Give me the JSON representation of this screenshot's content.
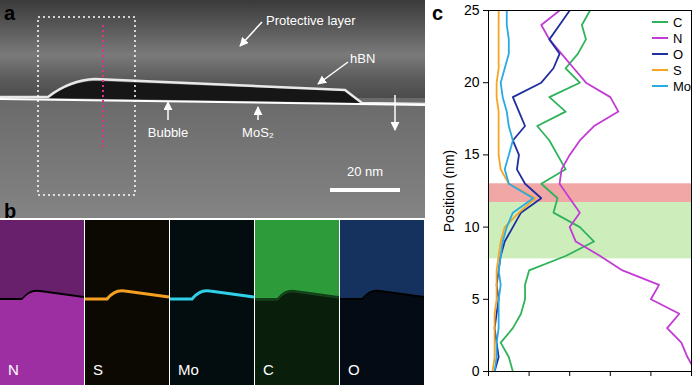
{
  "panels": {
    "a": {
      "label": "a",
      "annotations": [
        "Protective layer",
        "hBN",
        "Bubble",
        "MoS₂"
      ],
      "scale_bar": "20 nm"
    },
    "b": {
      "label": "b",
      "maps": [
        {
          "label": "N",
          "color": "#d23fd8"
        },
        {
          "label": "S",
          "color": "#f5a020"
        },
        {
          "label": "Mo",
          "color": "#2fd0e8"
        },
        {
          "label": "C",
          "color": "#3ccf4e"
        },
        {
          "label": "O",
          "color": "#2f6fd0"
        }
      ]
    }
  },
  "chart_data": {
    "label": "c",
    "type": "line",
    "ylabel": "Position (nm)",
    "y": [
      0,
      1,
      2,
      3,
      4,
      5,
      6,
      7,
      8,
      9,
      10,
      11,
      12,
      13,
      14,
      15,
      16,
      17,
      18,
      19,
      20,
      21,
      22,
      23,
      24,
      25
    ],
    "series": [
      {
        "name": "C",
        "color": "#2fb35a",
        "values": [
          1.2,
          1.0,
          0.6,
          1.2,
          1.6,
          1.8,
          1.8,
          2.0,
          3.8,
          5.2,
          4.5,
          3.2,
          3.4,
          2.6,
          3.8,
          3.4,
          3.0,
          2.4,
          3.8,
          3.0,
          4.5,
          3.8,
          4.4,
          4.8,
          4.6,
          5.0
        ]
      },
      {
        "name": "N",
        "color": "#c23bd4",
        "values": [
          10.2,
          9.8,
          9.5,
          8.8,
          9.4,
          8.0,
          8.4,
          6.6,
          5.5,
          4.3,
          4.0,
          4.5,
          4.0,
          3.5,
          3.6,
          4.0,
          4.5,
          5.2,
          6.4,
          6.0,
          4.8,
          4.2,
          3.6,
          3.0,
          2.6,
          3.5
        ]
      },
      {
        "name": "O",
        "color": "#1f2f9e",
        "values": [
          0.3,
          0.5,
          0.4,
          0.3,
          0.4,
          0.5,
          0.4,
          0.5,
          0.6,
          0.8,
          1.2,
          1.6,
          2.6,
          1.8,
          1.4,
          1.5,
          1.2,
          1.8,
          1.5,
          1.2,
          2.6,
          3.2,
          3.5,
          3.0,
          3.5,
          4.0
        ]
      },
      {
        "name": "S",
        "color": "#f5a623",
        "values": [
          0.2,
          0.3,
          0.3,
          0.3,
          0.3,
          0.4,
          0.4,
          0.4,
          0.5,
          0.6,
          0.8,
          1.5,
          2.3,
          1.0,
          0.6,
          0.5,
          0.5,
          0.5,
          0.5,
          0.4,
          0.4,
          0.5,
          0.5,
          0.5,
          0.5,
          0.5
        ]
      },
      {
        "name": "Mo",
        "color": "#29aae1",
        "values": [
          0.3,
          0.4,
          0.4,
          0.5,
          0.5,
          0.5,
          0.6,
          0.5,
          0.6,
          0.7,
          0.9,
          1.2,
          2.2,
          1.0,
          0.8,
          1.0,
          1.2,
          1.0,
          0.9,
          0.7,
          0.6,
          0.8,
          1.0,
          1.0,
          0.9,
          0.9
        ]
      }
    ],
    "bands": [
      {
        "range": [
          11.7,
          13
        ],
        "color": "#f2a7a7"
      },
      {
        "range": [
          7.8,
          11.7
        ],
        "color": "#cdeebb"
      }
    ],
    "xlim": [
      0,
      10
    ],
    "xticks": [
      0,
      2,
      4,
      6,
      8,
      10
    ],
    "ylim": [
      0,
      25
    ],
    "yticks": [
      0,
      5,
      10,
      15,
      20,
      25
    ],
    "tick_labels": "y",
    "legend": "top-right"
  }
}
